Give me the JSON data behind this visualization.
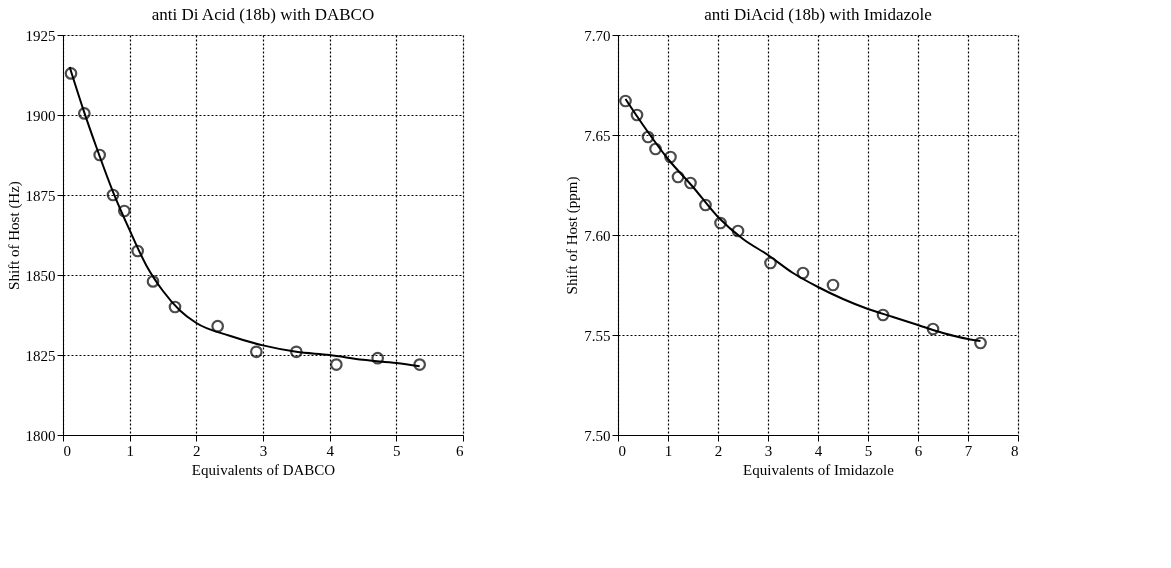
{
  "chart_data": [
    {
      "type": "scatter",
      "title": "anti Di Acid (18b) with DABCO",
      "xlabel": "Equivalents of DABCO",
      "ylabel": "Shift of Host (Hz)",
      "xlim": [
        0,
        6
      ],
      "xticks": [
        0,
        1,
        2,
        3,
        4,
        5,
        6
      ],
      "ylim": [
        1800,
        1925
      ],
      "yticks": [
        1800,
        1825,
        1850,
        1875,
        1900,
        1925
      ],
      "grid": true,
      "marker": "circle",
      "series": [
        {
          "color": "#000000",
          "x": [
            0.12,
            0.32,
            0.55,
            0.75,
            0.92,
            1.12,
            1.35,
            1.68,
            2.32,
            2.9,
            3.5,
            4.1,
            4.72,
            5.35
          ],
          "values": [
            1913,
            1900.5,
            1887.5,
            1875,
            1870,
            1857.5,
            1848,
            1840,
            1834,
            1826,
            1826,
            1822,
            1824,
            1822
          ]
        },
        {
          "type": "line",
          "color": "#000000",
          "marker": "none",
          "x": [
            0.1,
            0.3,
            0.5,
            0.75,
            1.0,
            1.25,
            1.5,
            1.75,
            2.0,
            2.5,
            3.0,
            3.5,
            4.0,
            4.5,
            5.0,
            5.35
          ],
          "values": [
            1915,
            1902,
            1890,
            1876,
            1864,
            1853,
            1845,
            1839,
            1835,
            1831,
            1828,
            1826,
            1825,
            1823.5,
            1822.5,
            1821.5
          ]
        }
      ]
    },
    {
      "type": "scatter",
      "title": "anti DiAcid (18b) with Imidazole",
      "xlabel": "Equivalents of Imidazole",
      "ylabel": "Shift of Host (ppm)",
      "xlim": [
        0,
        8
      ],
      "xticks": [
        0,
        1,
        2,
        3,
        4,
        5,
        6,
        7,
        8
      ],
      "ylim": [
        7.5,
        7.7
      ],
      "yticks": [
        {
          "value": 7.5,
          "label": "7.50"
        },
        {
          "value": 7.55,
          "label": "7.55"
        },
        {
          "value": 7.6,
          "label": "7.60"
        },
        {
          "value": 7.65,
          "label": "7.65"
        },
        {
          "value": 7.7,
          "label": "7.70"
        }
      ],
      "grid": true,
      "marker": "circle",
      "series": [
        {
          "color": "#000000",
          "x": [
            0.15,
            0.38,
            0.6,
            0.75,
            1.05,
            1.2,
            1.45,
            1.75,
            2.05,
            2.4,
            3.05,
            3.7,
            4.3,
            5.3,
            6.3,
            7.25
          ],
          "values": [
            7.667,
            7.66,
            7.649,
            7.643,
            7.639,
            7.629,
            7.626,
            7.615,
            7.606,
            7.602,
            7.586,
            7.581,
            7.575,
            7.56,
            7.553,
            7.546
          ]
        },
        {
          "type": "line",
          "color": "#000000",
          "marker": "none",
          "x": [
            0.15,
            0.5,
            1.0,
            1.5,
            2.0,
            2.5,
            3.0,
            3.5,
            4.0,
            4.5,
            5.0,
            5.5,
            6.0,
            6.5,
            7.0,
            7.25
          ],
          "values": [
            7.668,
            7.655,
            7.638,
            7.624,
            7.609,
            7.598,
            7.59,
            7.581,
            7.574,
            7.568,
            7.563,
            7.559,
            7.555,
            7.551,
            7.548,
            7.547
          ]
        }
      ]
    }
  ]
}
